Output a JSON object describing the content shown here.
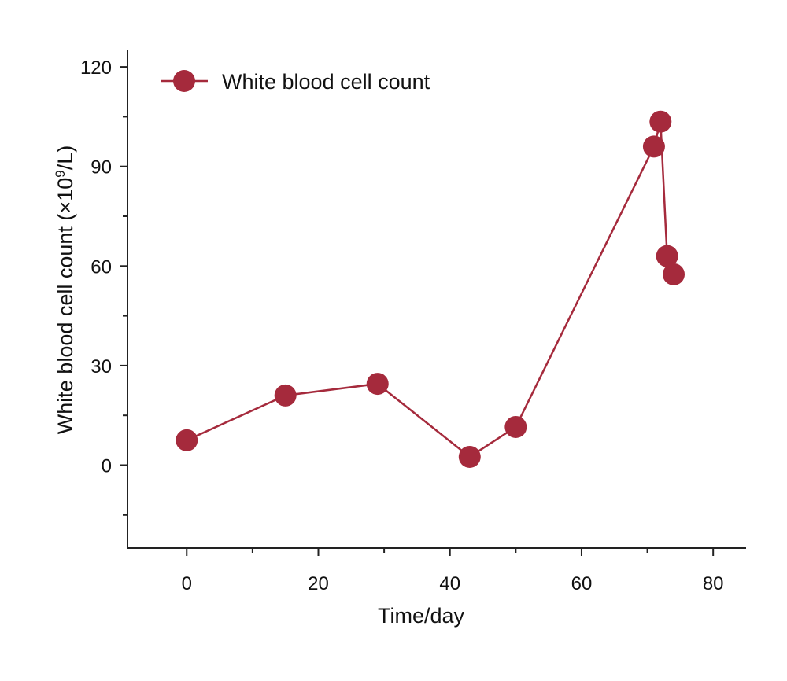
{
  "chart_data": {
    "type": "line",
    "title": "",
    "xlabel": "Time/day",
    "ylabel_main": "White blood cell count (×10",
    "ylabel_sup": "9",
    "ylabel_end": "/L)",
    "xlim": [
      -9,
      85
    ],
    "ylim": [
      -25,
      125
    ],
    "x_ticks_major": [
      0,
      20,
      40,
      60,
      80
    ],
    "x_ticks_minor": [
      10,
      30,
      50,
      70
    ],
    "y_ticks_major": [
      0,
      30,
      60,
      90,
      120
    ],
    "y_ticks_minor": [
      -15,
      15,
      45,
      75,
      105
    ],
    "legend_position": "top-left",
    "grid": false,
    "color": "#a52a3c",
    "series": [
      {
        "name": "White blood cell count",
        "points": [
          {
            "x": 0,
            "y": 7.5
          },
          {
            "x": 15,
            "y": 21
          },
          {
            "x": 29,
            "y": 24.5
          },
          {
            "x": 43,
            "y": 2.5
          },
          {
            "x": 50,
            "y": 11.5
          },
          {
            "x": 71,
            "y": 96
          },
          {
            "x": 72,
            "y": 103.5
          },
          {
            "x": 73,
            "y": 63
          },
          {
            "x": 74,
            "y": 57.5
          }
        ]
      }
    ]
  }
}
